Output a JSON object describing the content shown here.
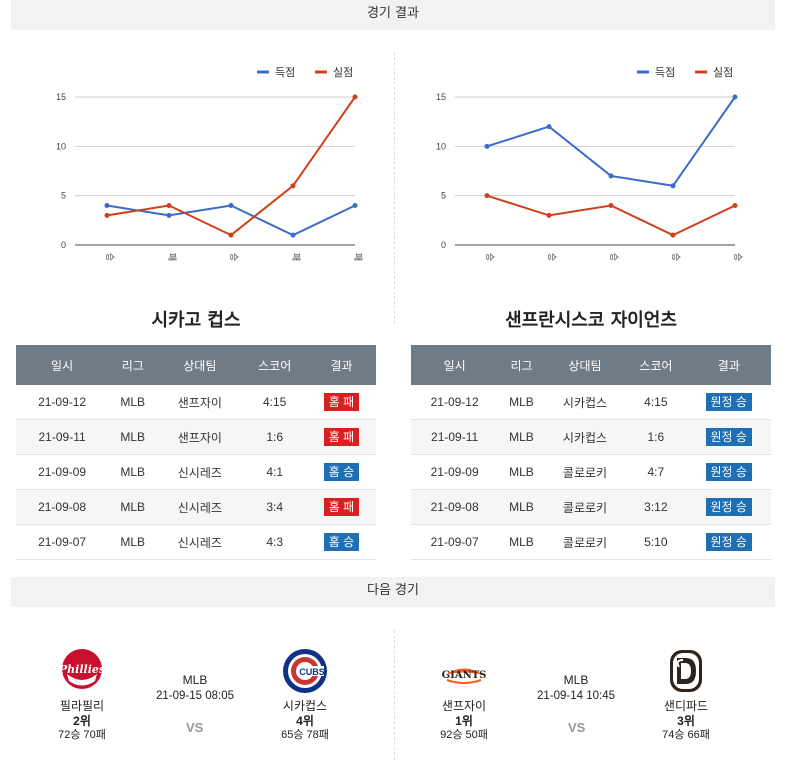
{
  "results_header": "경기 결과",
  "next_header": "다음 경기",
  "legend": {
    "scored": "득점",
    "conceded": "실점"
  },
  "colors": {
    "scored": "#3b6cc8",
    "conceded": "#d0401a",
    "loss_badge": "#d92020",
    "win_badge": "#1f6fb4",
    "table_header": "#6f7c86"
  },
  "chart_data": [
    {
      "type": "line",
      "categories": [
        "승",
        "패",
        "승",
        "패",
        "패"
      ],
      "series": [
        {
          "name": "득점",
          "values": [
            4,
            3,
            4,
            1,
            4
          ]
        },
        {
          "name": "실점",
          "values": [
            3,
            4,
            1,
            6,
            15
          ]
        }
      ],
      "ylim": [
        0,
        15
      ],
      "yticks": [
        0,
        5,
        10,
        15
      ],
      "grid": true,
      "legend_position": "top-right"
    },
    {
      "type": "line",
      "categories": [
        "승",
        "승",
        "승",
        "승",
        "승"
      ],
      "series": [
        {
          "name": "득점",
          "values": [
            10,
            12,
            7,
            6,
            15
          ]
        },
        {
          "name": "실점",
          "values": [
            5,
            3,
            4,
            1,
            4
          ]
        }
      ],
      "ylim": [
        0,
        15
      ],
      "yticks": [
        0,
        5,
        10,
        15
      ],
      "grid": true,
      "legend_position": "top-right"
    }
  ],
  "table_headers": [
    "일시",
    "리그",
    "상대팀",
    "스코어",
    "결과"
  ],
  "left_team": {
    "title": "시카고 컵스",
    "rows": [
      {
        "date": "21-09-12",
        "league": "MLB",
        "opponent": "샌프자이",
        "score": "4:15",
        "result": "홈 패",
        "win": false
      },
      {
        "date": "21-09-11",
        "league": "MLB",
        "opponent": "샌프자이",
        "score": "1:6",
        "result": "홈 패",
        "win": false
      },
      {
        "date": "21-09-09",
        "league": "MLB",
        "opponent": "신시레즈",
        "score": "4:1",
        "result": "홈 승",
        "win": true
      },
      {
        "date": "21-09-08",
        "league": "MLB",
        "opponent": "신시레즈",
        "score": "3:4",
        "result": "홈 패",
        "win": false
      },
      {
        "date": "21-09-07",
        "league": "MLB",
        "opponent": "신시레즈",
        "score": "4:3",
        "result": "홈 승",
        "win": true
      }
    ]
  },
  "right_team": {
    "title": "샌프란시스코 자이언츠",
    "rows": [
      {
        "date": "21-09-12",
        "league": "MLB",
        "opponent": "시카컵스",
        "score": "4:15",
        "result": "원정 승",
        "win": true
      },
      {
        "date": "21-09-11",
        "league": "MLB",
        "opponent": "시카컵스",
        "score": "1:6",
        "result": "원정 승",
        "win": true
      },
      {
        "date": "21-09-09",
        "league": "MLB",
        "opponent": "콜로로키",
        "score": "4:7",
        "result": "원정 승",
        "win": true
      },
      {
        "date": "21-09-08",
        "league": "MLB",
        "opponent": "콜로로키",
        "score": "3:12",
        "result": "원정 승",
        "win": true
      },
      {
        "date": "21-09-07",
        "league": "MLB",
        "opponent": "콜로로키",
        "score": "5:10",
        "result": "원정 승",
        "win": true
      }
    ]
  },
  "next_games": [
    {
      "league": "MLB",
      "datetime": "21-09-15 08:05",
      "vs": "VS",
      "home": {
        "name": "필라필리",
        "rank": "2위",
        "record": "72승 70패",
        "logo": "phillies-logo"
      },
      "away": {
        "name": "시카컵스",
        "rank": "4위",
        "record": "65승 78패",
        "logo": "cubs-logo",
        "logo_text": "CUBS"
      }
    },
    {
      "league": "MLB",
      "datetime": "21-09-14 10:45",
      "vs": "VS",
      "home": {
        "name": "샌프자이",
        "rank": "1위",
        "record": "92승 50패",
        "logo": "giants-logo",
        "logo_text": "GIANTS"
      },
      "away": {
        "name": "샌디파드",
        "rank": "3위",
        "record": "74승 66패",
        "logo": "padres-logo"
      }
    }
  ]
}
